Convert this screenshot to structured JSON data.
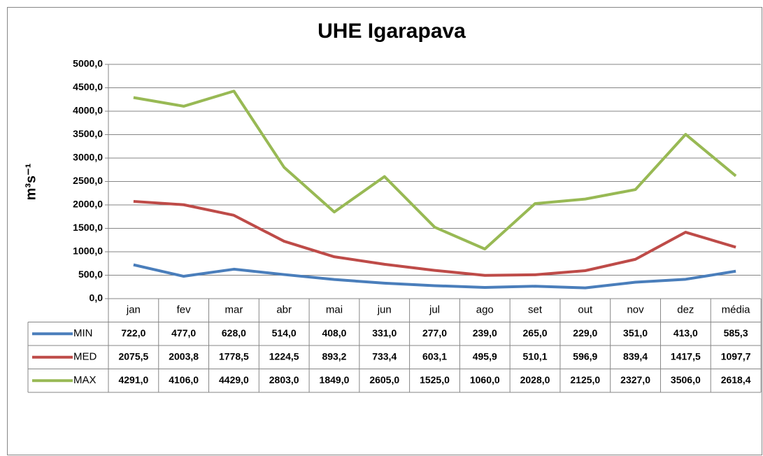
{
  "chart_data": {
    "type": "line",
    "title": "UHE Igarapava",
    "y_label": "m³s⁻¹",
    "categories": [
      "jan",
      "fev",
      "mar",
      "abr",
      "mai",
      "jun",
      "jul",
      "ago",
      "set",
      "out",
      "nov",
      "dez",
      "média"
    ],
    "series": [
      {
        "name": "MIN",
        "color": "#4a7ebb",
        "values": [
          722.0,
          477.0,
          628.0,
          514.0,
          408.0,
          331.0,
          277.0,
          239.0,
          265.0,
          229.0,
          351.0,
          413.0,
          585.3
        ],
        "value_labels": [
          "722,0",
          "477,0",
          "628,0",
          "514,0",
          "408,0",
          "331,0",
          "277,0",
          "239,0",
          "265,0",
          "229,0",
          "351,0",
          "413,0",
          "585,3"
        ]
      },
      {
        "name": "MED",
        "color": "#be4b48",
        "values": [
          2075.5,
          2003.8,
          1778.5,
          1224.5,
          893.2,
          733.4,
          603.1,
          495.9,
          510.1,
          596.9,
          839.4,
          1417.5,
          1097.7
        ],
        "value_labels": [
          "2075,5",
          "2003,8",
          "1778,5",
          "1224,5",
          "893,2",
          "733,4",
          "603,1",
          "495,9",
          "510,1",
          "596,9",
          "839,4",
          "1417,5",
          "1097,7"
        ]
      },
      {
        "name": "MAX",
        "color": "#98b954",
        "values": [
          4291.0,
          4106.0,
          4429.0,
          2803.0,
          1849.0,
          2605.0,
          1525.0,
          1060.0,
          2028.0,
          2125.0,
          2327.0,
          3506.0,
          2618.4
        ],
        "value_labels": [
          "4291,0",
          "4106,0",
          "4429,0",
          "2803,0",
          "1849,0",
          "2605,0",
          "1525,0",
          "1060,0",
          "2028,0",
          "2125,0",
          "2327,0",
          "3506,0",
          "2618,4"
        ]
      }
    ],
    "ylim": [
      0,
      5000
    ],
    "yticks": [
      {
        "value": 0,
        "label": "0,0"
      },
      {
        "value": 500,
        "label": "500,0"
      },
      {
        "value": 1000,
        "label": "1000,0"
      },
      {
        "value": 1500,
        "label": "1500,0"
      },
      {
        "value": 2000,
        "label": "2000,0"
      },
      {
        "value": 2500,
        "label": "2500,0"
      },
      {
        "value": 3000,
        "label": "3000,0"
      },
      {
        "value": 3500,
        "label": "3500,0"
      },
      {
        "value": 4000,
        "label": "4000,0"
      },
      {
        "value": 4500,
        "label": "4500,0"
      },
      {
        "value": 5000,
        "label": "5000,0"
      }
    ],
    "grid": true
  }
}
